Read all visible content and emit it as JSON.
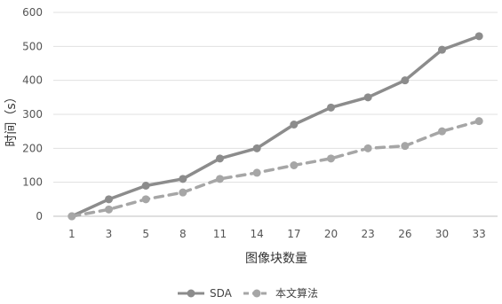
{
  "chart_data": {
    "type": "line",
    "categories": [
      "1",
      "3",
      "5",
      "8",
      "11",
      "14",
      "17",
      "20",
      "23",
      "26",
      "30",
      "33"
    ],
    "xlabel": "图像块数量",
    "ylabel": "时间（s）",
    "ylim": [
      0,
      600
    ],
    "yticks": [
      0,
      100,
      200,
      300,
      400,
      500,
      600
    ],
    "grid": true,
    "legend_position": "bottom-center",
    "series": [
      {
        "name": "SDA",
        "color": "#8c8c8c",
        "dashed": false,
        "values": [
          0,
          50,
          90,
          110,
          170,
          200,
          270,
          320,
          350,
          400,
          490,
          530
        ]
      },
      {
        "name": "本文算法",
        "color": "#a6a6a6",
        "dashed": true,
        "values": [
          0,
          20,
          50,
          70,
          110,
          128,
          150,
          170,
          200,
          207,
          250,
          280
        ]
      }
    ]
  }
}
